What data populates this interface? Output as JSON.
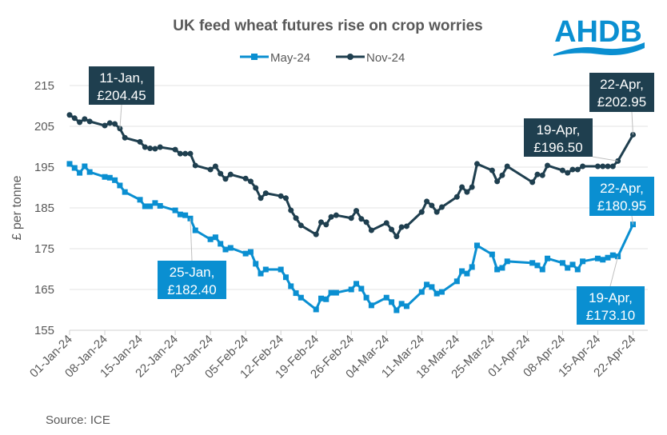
{
  "logo": {
    "text": "AHDB",
    "color": "#0a8fd1"
  },
  "chart_data": {
    "type": "line",
    "title": "UK feed wheat futures rise on crop worries",
    "xlabel": "",
    "ylabel": "£ per tonne",
    "source": "Source: ICE",
    "ylim": [
      155,
      215
    ],
    "yticks": [
      155,
      165,
      175,
      185,
      195,
      205,
      215
    ],
    "grid": true,
    "legend": "top",
    "xticks": [
      "01-Jan-24",
      "08-Jan-24",
      "15-Jan-24",
      "22-Jan-24",
      "29-Jan-24",
      "05-Feb-24",
      "12-Feb-24",
      "19-Feb-24",
      "26-Feb-24",
      "04-Mar-24",
      "11-Mar-24",
      "18-Mar-24",
      "25-Mar-24",
      "01-Apr-24",
      "08-Apr-24",
      "15-Apr-24",
      "22-Apr-24"
    ],
    "x": [
      "2024-01-01",
      "2024-01-02",
      "2024-01-03",
      "2024-01-04",
      "2024-01-05",
      "2024-01-08",
      "2024-01-09",
      "2024-01-10",
      "2024-01-11",
      "2024-01-12",
      "2024-01-15",
      "2024-01-16",
      "2024-01-17",
      "2024-01-18",
      "2024-01-19",
      "2024-01-22",
      "2024-01-23",
      "2024-01-24",
      "2024-01-25",
      "2024-01-26",
      "2024-01-29",
      "2024-01-30",
      "2024-01-31",
      "2024-02-01",
      "2024-02-02",
      "2024-02-05",
      "2024-02-06",
      "2024-02-07",
      "2024-02-08",
      "2024-02-09",
      "2024-02-12",
      "2024-02-13",
      "2024-02-14",
      "2024-02-15",
      "2024-02-16",
      "2024-02-19",
      "2024-02-20",
      "2024-02-21",
      "2024-02-22",
      "2024-02-23",
      "2024-02-26",
      "2024-02-27",
      "2024-02-28",
      "2024-02-29",
      "2024-03-01",
      "2024-03-04",
      "2024-03-05",
      "2024-03-06",
      "2024-03-07",
      "2024-03-08",
      "2024-03-11",
      "2024-03-12",
      "2024-03-13",
      "2024-03-14",
      "2024-03-15",
      "2024-03-18",
      "2024-03-19",
      "2024-03-20",
      "2024-03-21",
      "2024-03-22",
      "2024-03-25",
      "2024-03-26",
      "2024-03-27",
      "2024-03-28",
      "2024-04-02",
      "2024-04-03",
      "2024-04-04",
      "2024-04-05",
      "2024-04-08",
      "2024-04-09",
      "2024-04-10",
      "2024-04-11",
      "2024-04-12",
      "2024-04-15",
      "2024-04-16",
      "2024-04-17",
      "2024-04-18",
      "2024-04-19",
      "2024-04-22"
    ],
    "series": [
      {
        "name": "May-24",
        "color": "#0a8fd1",
        "marker": "square",
        "values": [
          195.8,
          194.8,
          193.6,
          195.2,
          193.8,
          192.6,
          192.4,
          191.8,
          190.5,
          188.9,
          187.0,
          185.4,
          185.4,
          186.2,
          185.5,
          184.4,
          183.4,
          183.2,
          182.4,
          179.5,
          177.3,
          177.8,
          176.2,
          174.8,
          175.2,
          173.8,
          174.2,
          171.3,
          168.9,
          169.9,
          169.9,
          168.0,
          165.8,
          164.1,
          163.0,
          160.1,
          162.8,
          162.6,
          164.2,
          164.2,
          165.0,
          166.4,
          165.2,
          163.0,
          161.1,
          163.0,
          161.9,
          159.9,
          161.5,
          160.9,
          164.4,
          166.2,
          165.6,
          164.0,
          164.4,
          167.0,
          169.5,
          168.9,
          170.5,
          175.8,
          173.6,
          169.9,
          170.3,
          171.9,
          171.5,
          170.9,
          169.9,
          172.6,
          171.5,
          170.3,
          171.1,
          169.9,
          171.9,
          172.6,
          172.3,
          172.8,
          173.4,
          173.1,
          180.95
        ]
      },
      {
        "name": "Nov-24",
        "color": "#1f3f4f",
        "marker": "circle",
        "values": [
          207.8,
          207.0,
          206.0,
          206.8,
          206.2,
          205.2,
          205.8,
          205.6,
          204.45,
          202.2,
          201.2,
          199.9,
          199.6,
          199.5,
          199.9,
          199.3,
          198.3,
          198.3,
          198.3,
          195.4,
          194.4,
          195.2,
          193.4,
          192.1,
          193.2,
          192.2,
          191.5,
          189.9,
          187.4,
          188.6,
          187.9,
          187.4,
          184.4,
          182.5,
          180.7,
          178.5,
          181.5,
          180.9,
          182.8,
          183.2,
          182.5,
          184.3,
          182.3,
          181.5,
          179.5,
          181.3,
          179.7,
          178.0,
          180.3,
          180.5,
          184.0,
          186.6,
          185.6,
          184.0,
          185.2,
          187.7,
          190.1,
          188.9,
          190.1,
          195.8,
          194.2,
          191.5,
          193.0,
          195.2,
          191.3,
          193.2,
          193.0,
          195.4,
          194.2,
          193.6,
          194.4,
          194.4,
          195.2,
          195.2,
          195.2,
          195.2,
          195.2,
          196.5,
          202.95
        ]
      }
    ],
    "annotations": [
      {
        "series": "Nov-24",
        "date": "2024-01-11",
        "line1": "11-Jan,",
        "line2": "£204.45"
      },
      {
        "series": "May-24",
        "date": "2024-01-25",
        "line1": "25-Jan,",
        "line2": "£182.40"
      },
      {
        "series": "Nov-24",
        "date": "2024-04-22",
        "line1": "22-Apr,",
        "line2": "£202.95"
      },
      {
        "series": "Nov-24",
        "date": "2024-04-19",
        "line1": "19-Apr,",
        "line2": "£196.50"
      },
      {
        "series": "May-24",
        "date": "2024-04-22",
        "line1": "22-Apr,",
        "line2": "£180.95"
      },
      {
        "series": "May-24",
        "date": "2024-04-19",
        "line1": "19-Apr,",
        "line2": "£173.10"
      }
    ]
  }
}
